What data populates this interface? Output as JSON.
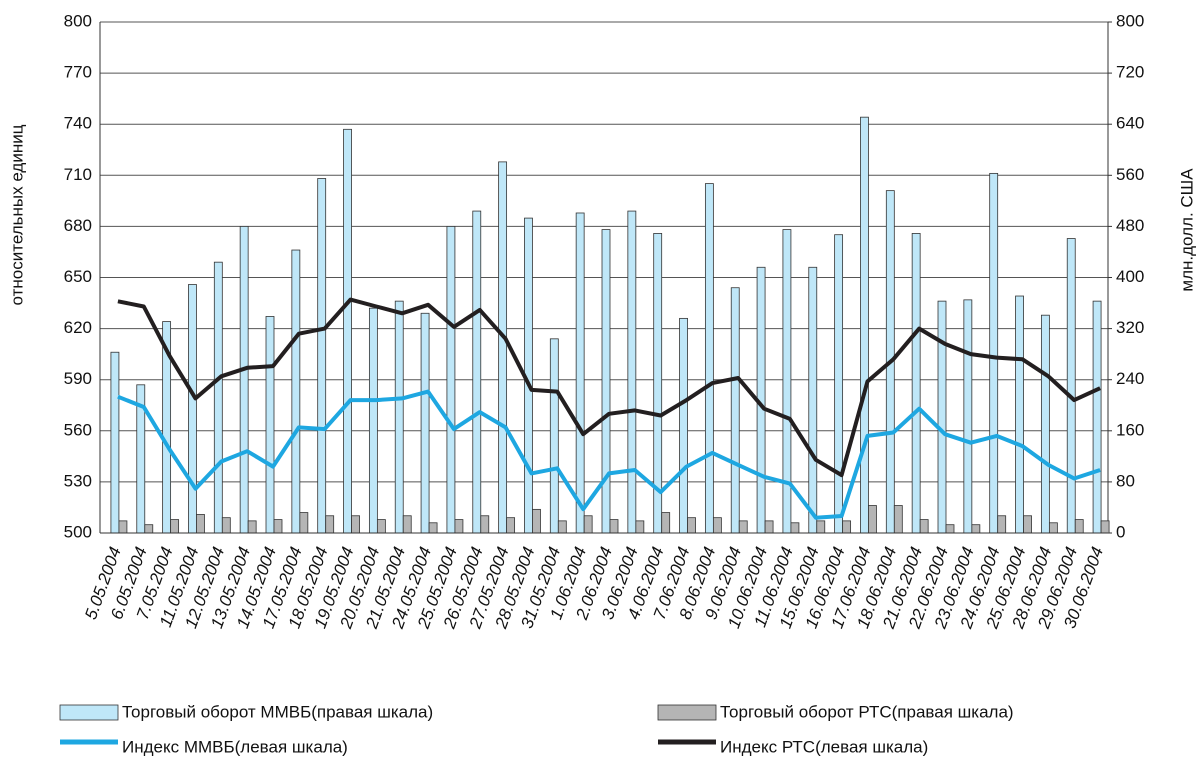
{
  "chart_data": {
    "type": "bar_line",
    "categories": [
      "5.05.2004",
      "6.05.2004",
      "7.05.2004",
      "11.05.2004",
      "12.05.2004",
      "13.05.2004",
      "14.05.2004",
      "17.05.2004",
      "18.05.2004",
      "19.05.2004",
      "20.05.2004",
      "21.05.2004",
      "24.05.2004",
      "25.05.2004",
      "26.05.2004",
      "27.05.2004",
      "28.05.2004",
      "31.05.2004",
      "1.06.2004",
      "2.06.2004",
      "3.06.2004",
      "4.06.2004",
      "7.06.2004",
      "8.06.2004",
      "9.06.2004",
      "10.06.2004",
      "11.06.2004",
      "15.06.2004",
      "16.06.2004",
      "17.06.2004",
      "18.06.2004",
      "21.06.2004",
      "22.06.2004",
      "23.06.2004",
      "24.06.2004",
      "25.06.2004",
      "28.06.2004",
      "29.06.2004",
      "30.06.2004"
    ],
    "series": [
      {
        "name": "Торговый оборот ММВБ(правая шкала)",
        "kind": "bar",
        "axis": "y2",
        "color": "#bfe7f8",
        "values": [
          283,
          232,
          331,
          389,
          424,
          480,
          339,
          443,
          555,
          632,
          352,
          363,
          344,
          480,
          504,
          581,
          493,
          304,
          501,
          475,
          504,
          469,
          336,
          547,
          384,
          416,
          475,
          416,
          467,
          651,
          536,
          469,
          363,
          365,
          563,
          371,
          341,
          461,
          363
        ]
      },
      {
        "name": "Торговый оборот РТС(правая шкала)",
        "kind": "bar",
        "axis": "y2",
        "color": "#b5b5b5",
        "values": [
          19,
          13,
          21,
          29,
          24,
          19,
          21,
          32,
          27,
          27,
          21,
          27,
          16,
          21,
          27,
          24,
          37,
          19,
          27,
          21,
          19,
          32,
          24,
          24,
          19,
          19,
          16,
          19,
          19,
          43,
          43,
          21,
          13,
          13,
          27,
          27,
          16,
          21,
          19
        ]
      },
      {
        "name": "Индекс ММВБ(левая шкала)",
        "kind": "line",
        "color": "#1ea7e1",
        "values": [
          580,
          574,
          549,
          526,
          542,
          548,
          539,
          562,
          561,
          578,
          578,
          579,
          583,
          561,
          571,
          562,
          535,
          538,
          514,
          535,
          537,
          524,
          539,
          547,
          540,
          533,
          529,
          509,
          510,
          557,
          559,
          573,
          558,
          553,
          557,
          551,
          540,
          532,
          537
        ]
      },
      {
        "name": "Индекс РТС(левая шкала)",
        "kind": "line",
        "color": "#231f20",
        "values": [
          636,
          633,
          604,
          579,
          592,
          597,
          598,
          617,
          620,
          637,
          633,
          629,
          634,
          621,
          631,
          614,
          584,
          583,
          558,
          570,
          572,
          569,
          578,
          588,
          591,
          573,
          567,
          543,
          534,
          589,
          602,
          620,
          611,
          605,
          603,
          602,
          592,
          578,
          585
        ]
      }
    ],
    "ylabel": "относительных единиц",
    "y2label": "млн.долл. США",
    "ylim": [
      500,
      800
    ],
    "yticks": [
      500,
      530,
      560,
      590,
      620,
      650,
      680,
      710,
      740,
      770,
      800
    ],
    "y2lim": [
      0,
      800
    ],
    "y2ticks": [
      0,
      80,
      160,
      240,
      320,
      400,
      480,
      560,
      640,
      720,
      800
    ],
    "grid": true
  }
}
